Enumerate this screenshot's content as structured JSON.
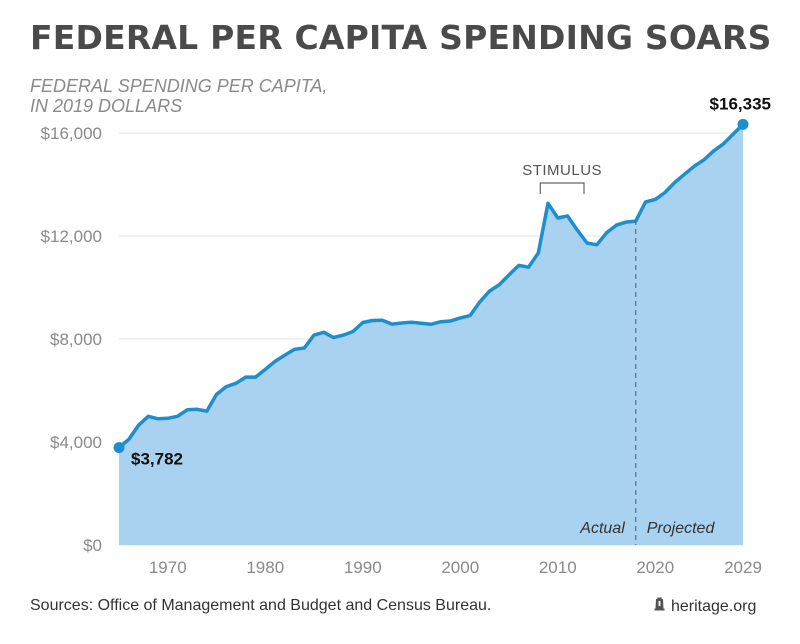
{
  "title": "FEDERAL PER CAPITA SPENDING SOARS",
  "subtitle_lines": [
    "FEDERAL SPENDING PER CAPITA,",
    "IN 2019 DOLLARS"
  ],
  "source": "Sources: Office of Management and Budget and Census Bureau.",
  "brand": {
    "text": "heritage.org",
    "icon": "bell-icon"
  },
  "colors": {
    "area": "#a9d1f0",
    "line": "#1d8fce",
    "title": "#4a4a4a",
    "axis_text": "#8a8a8a"
  },
  "chart_data": {
    "type": "area",
    "title": "FEDERAL PER CAPITA SPENDING SOARS",
    "subtitle": "FEDERAL SPENDING PER CAPITA, IN 2019 DOLLARS",
    "ylim": [
      0,
      16000
    ],
    "xlim": [
      1965,
      2029
    ],
    "grid": true,
    "yticks": [
      {
        "value": 0,
        "label": "$0"
      },
      {
        "value": 4000,
        "label": "$4,000"
      },
      {
        "value": 8000,
        "label": "$8,000"
      },
      {
        "value": 12000,
        "label": "$12,000"
      },
      {
        "value": 16000,
        "label": "$16,000"
      }
    ],
    "xticks": [
      {
        "value": 1970,
        "label": "1970"
      },
      {
        "value": 1980,
        "label": "1980"
      },
      {
        "value": 1990,
        "label": "1990"
      },
      {
        "value": 2000,
        "label": "2000"
      },
      {
        "value": 2010,
        "label": "2010"
      },
      {
        "value": 2020,
        "label": "2020"
      },
      {
        "value": 2029,
        "label": "2029"
      }
    ],
    "series": [
      {
        "x": [
          1965,
          1966,
          1967,
          1968,
          1969,
          1970,
          1971,
          1972,
          1973,
          1974,
          1975,
          1976,
          1977,
          1978,
          1979,
          1980,
          1981,
          1982,
          1983,
          1984,
          1985,
          1986,
          1987,
          1988,
          1989,
          1990,
          1991,
          1992,
          1993,
          1994,
          1995,
          1996,
          1997,
          1998,
          1999,
          2000,
          2001,
          2002,
          2003,
          2004,
          2005,
          2006,
          2007,
          2008,
          2009,
          2010,
          2011,
          2012,
          2013,
          2014,
          2015,
          2016,
          2017,
          2018,
          2019,
          2020,
          2021,
          2022,
          2023,
          2024,
          2025,
          2026,
          2027,
          2028,
          2029
        ],
        "y": [
          3782,
          4100,
          4650,
          5000,
          4900,
          4920,
          5000,
          5250,
          5270,
          5200,
          5850,
          6150,
          6280,
          6520,
          6520,
          6820,
          7130,
          7370,
          7600,
          7650,
          8150,
          8260,
          8060,
          8150,
          8290,
          8640,
          8720,
          8730,
          8580,
          8620,
          8650,
          8610,
          8570,
          8670,
          8700,
          8820,
          8910,
          9440,
          9860,
          10110,
          10490,
          10860,
          10790,
          11340,
          13270,
          12700,
          12780,
          12230,
          11730,
          11660,
          12120,
          12420,
          12540,
          12580,
          13320,
          13420,
          13690,
          14080,
          14400,
          14710,
          14960,
          15310,
          15580,
          15960,
          16335
        ]
      }
    ],
    "annotations": [
      {
        "label": "$3,782",
        "x": 1965,
        "y": 3782
      },
      {
        "label": "$16,335",
        "x": 2029,
        "y": 16335
      },
      {
        "label": "STIMULUS",
        "x_start": 2008,
        "x_end": 2013
      }
    ],
    "divider": {
      "x": 2018,
      "left_label": "Actual",
      "right_label": "Projected"
    }
  }
}
